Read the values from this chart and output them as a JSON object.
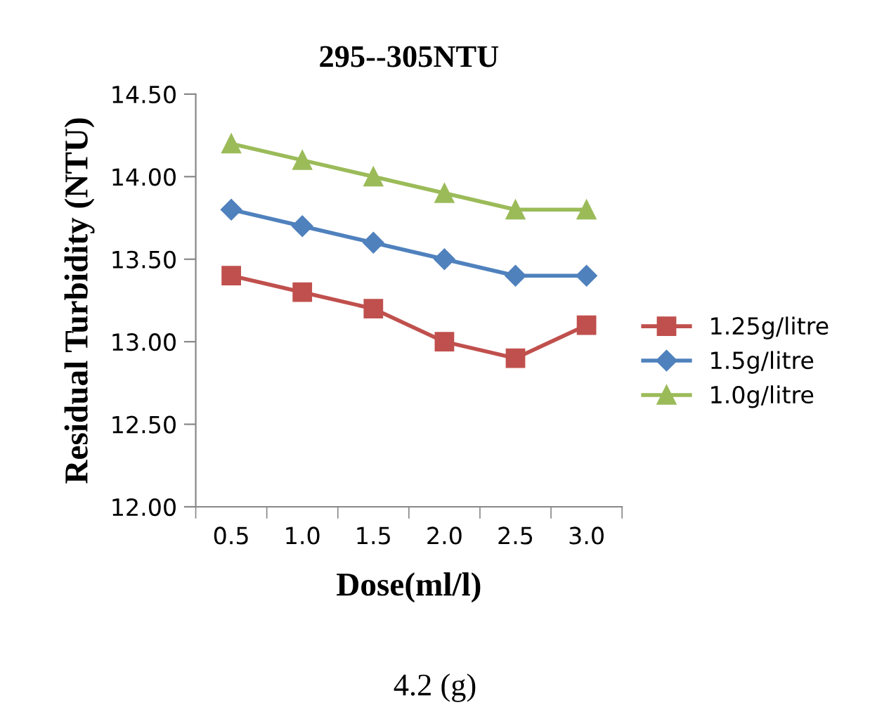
{
  "chart_data": {
    "type": "line",
    "title": "295--305NTU",
    "xlabel": "Dose(ml/l)",
    "ylabel": "Residual Turbidity (NTU)",
    "categories": [
      "0.5",
      "1.0",
      "1.5",
      "2.0",
      "2.5",
      "3.0"
    ],
    "series": [
      {
        "name": "1.25g/litre",
        "color": "#c0504d",
        "marker": "square",
        "values": [
          13.4,
          13.3,
          13.2,
          13.0,
          12.9,
          13.1
        ]
      },
      {
        "name": "1.5g/litre",
        "color": "#4f81bd",
        "marker": "diamond",
        "values": [
          13.8,
          13.7,
          13.6,
          13.5,
          13.4,
          13.4
        ]
      },
      {
        "name": "1.0g/litre",
        "color": "#9bbb59",
        "marker": "triangle",
        "values": [
          14.2,
          14.1,
          14.0,
          13.9,
          13.8,
          13.8
        ]
      }
    ],
    "ylim": [
      12.0,
      14.5
    ],
    "yticks": [
      {
        "value": 12.0,
        "label": "12.00"
      },
      {
        "value": 12.5,
        "label": "12.50"
      },
      {
        "value": 13.0,
        "label": "13.00"
      },
      {
        "value": 13.5,
        "label": "13.50"
      },
      {
        "value": 14.0,
        "label": "14.00"
      },
      {
        "value": 14.5,
        "label": "14.50"
      }
    ],
    "grid": false,
    "legend": "right",
    "line_style": "solid",
    "annotations": [
      "4.2 (g)"
    ]
  }
}
